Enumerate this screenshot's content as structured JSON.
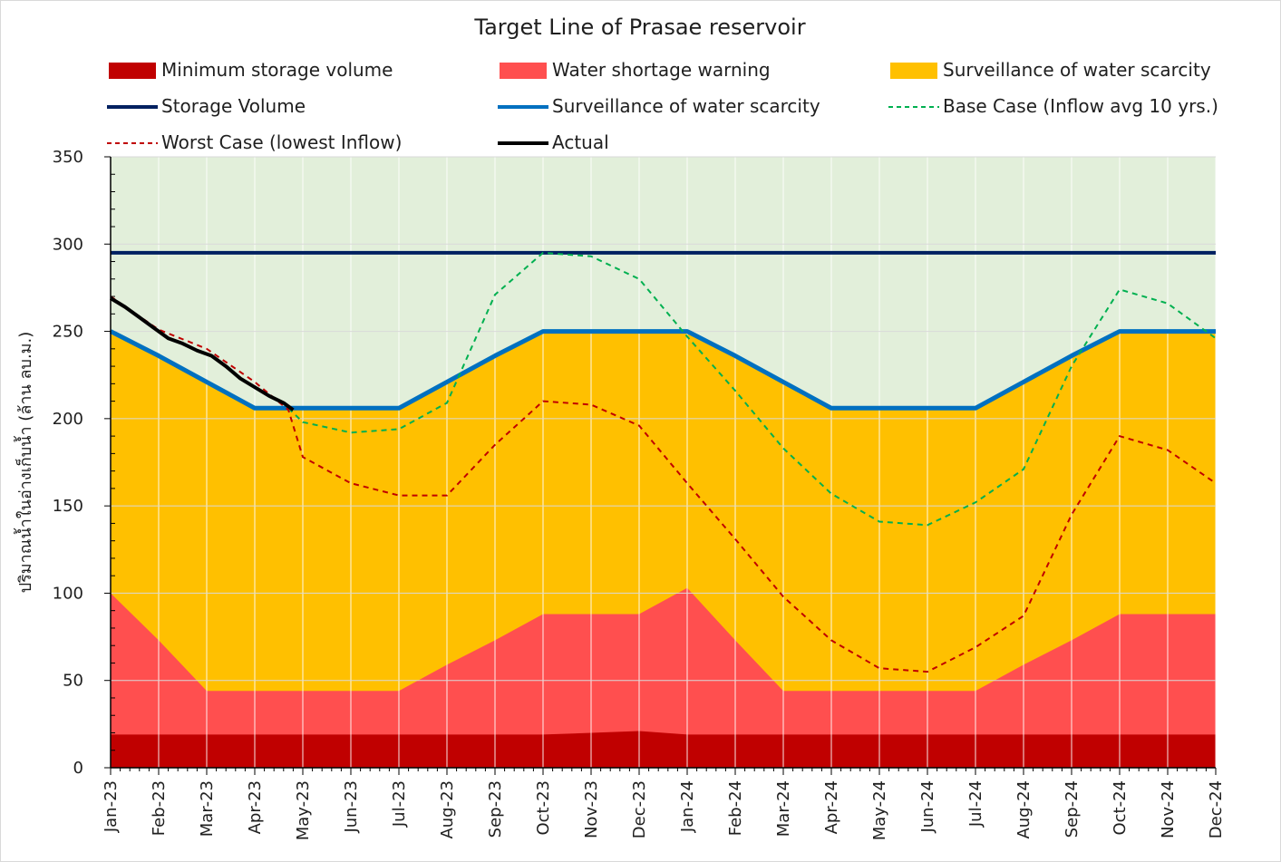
{
  "chart_data": {
    "type": "area",
    "title": "Target Line of Prasae reservoir",
    "ylabel": "ปริมาณน้ำในอ่างเก็บน้ำ (ล้าน ลบ.ม.)",
    "xlabel": "",
    "ylim": [
      0,
      350
    ],
    "yticks": [
      0,
      50,
      100,
      150,
      200,
      250,
      300,
      350
    ],
    "grid": true,
    "legend_position": "top",
    "categories": [
      "Jan-23",
      "Feb-23",
      "Mar-23",
      "Apr-23",
      "May-23",
      "Jun-23",
      "Jul-23",
      "Aug-23",
      "Sep-23",
      "Oct-23",
      "Nov-23",
      "Dec-23",
      "Jan-24",
      "Feb-24",
      "Mar-24",
      "Apr-24",
      "May-24",
      "Jun-24",
      "Jul-24",
      "Aug-24",
      "Sep-24",
      "Oct-24",
      "Nov-24",
      "Dec-24"
    ],
    "background_zone_color": "#e2efda",
    "areas": [
      {
        "name": "Surveillance of water scarcity",
        "color": "#ffc000",
        "values": [
          250,
          236,
          221,
          206,
          206,
          206,
          206,
          221,
          236,
          250,
          250,
          250,
          250,
          236,
          221,
          206,
          206,
          206,
          206,
          221,
          236,
          250,
          250,
          250
        ]
      },
      {
        "name": "Water shortage warning",
        "color": "#ff4f4f",
        "values": [
          100,
          73,
          44,
          44,
          44,
          44,
          44,
          59,
          73,
          88,
          88,
          88,
          103,
          73,
          44,
          44,
          44,
          44,
          44,
          59,
          73,
          88,
          88,
          88
        ]
      },
      {
        "name": "Minimum storage volume",
        "color": "#c00000",
        "values": [
          19,
          19,
          19,
          19,
          19,
          19,
          19,
          19,
          19,
          19,
          20,
          21,
          19,
          19,
          19,
          19,
          19,
          19,
          19,
          19,
          19,
          19,
          19,
          19
        ]
      }
    ],
    "lines": [
      {
        "name": "Storage Volume",
        "color": "#002060",
        "style": "solid",
        "values": [
          295,
          295,
          295,
          295,
          295,
          295,
          295,
          295,
          295,
          295,
          295,
          295,
          295,
          295,
          295,
          295,
          295,
          295,
          295,
          295,
          295,
          295,
          295,
          295
        ]
      },
      {
        "name": "Surveillance of water scarcity",
        "color": "#0070c0",
        "style": "solid",
        "values": [
          250,
          236,
          221,
          206,
          206,
          206,
          206,
          221,
          236,
          250,
          250,
          250,
          250,
          236,
          221,
          206,
          206,
          206,
          206,
          221,
          236,
          250,
          250,
          250
        ]
      },
      {
        "name": "Base Case (Inflow avg 10 yrs.)",
        "color": "#00b050",
        "style": "dashed",
        "x_start": 3.7,
        "values_after": [
          {
            "x": 3.7,
            "y": 206
          },
          {
            "x": 4,
            "y": 198
          },
          {
            "x": 5,
            "y": 192
          },
          {
            "x": 6,
            "y": 194
          },
          {
            "x": 7,
            "y": 209
          },
          {
            "x": 8,
            "y": 271
          },
          {
            "x": 9,
            "y": 295
          },
          {
            "x": 10,
            "y": 293
          },
          {
            "x": 11,
            "y": 280
          },
          {
            "x": 12,
            "y": 247
          },
          {
            "x": 13,
            "y": 216
          },
          {
            "x": 14,
            "y": 183
          },
          {
            "x": 15,
            "y": 157
          },
          {
            "x": 16,
            "y": 141
          },
          {
            "x": 17,
            "y": 139
          },
          {
            "x": 18,
            "y": 152
          },
          {
            "x": 19,
            "y": 171
          },
          {
            "x": 20,
            "y": 230
          },
          {
            "x": 21,
            "y": 274
          },
          {
            "x": 22,
            "y": 266
          },
          {
            "x": 23,
            "y": 246
          }
        ]
      },
      {
        "name": "Worst Case (lowest Inflow)",
        "color": "#c00000",
        "style": "dashed",
        "points": [
          {
            "x": 0,
            "y": 270
          },
          {
            "x": 1,
            "y": 251
          },
          {
            "x": 2,
            "y": 240
          },
          {
            "x": 3,
            "y": 221
          },
          {
            "x": 3.7,
            "y": 205
          },
          {
            "x": 4,
            "y": 178
          },
          {
            "x": 5,
            "y": 163
          },
          {
            "x": 6,
            "y": 156
          },
          {
            "x": 7,
            "y": 156
          },
          {
            "x": 8,
            "y": 185
          },
          {
            "x": 9,
            "y": 210
          },
          {
            "x": 10,
            "y": 208
          },
          {
            "x": 11,
            "y": 196
          },
          {
            "x": 12,
            "y": 163
          },
          {
            "x": 13,
            "y": 131
          },
          {
            "x": 14,
            "y": 98
          },
          {
            "x": 15,
            "y": 73
          },
          {
            "x": 16,
            "y": 57
          },
          {
            "x": 17,
            "y": 55
          },
          {
            "x": 18,
            "y": 69
          },
          {
            "x": 19,
            "y": 87
          },
          {
            "x": 20,
            "y": 145
          },
          {
            "x": 21,
            "y": 190
          },
          {
            "x": 22,
            "y": 182
          },
          {
            "x": 23,
            "y": 163
          }
        ]
      },
      {
        "name": "Actual",
        "color": "#000000",
        "style": "solid",
        "points": [
          {
            "x": 0,
            "y": 269
          },
          {
            "x": 0.3,
            "y": 264
          },
          {
            "x": 0.6,
            "y": 258
          },
          {
            "x": 0.9,
            "y": 252
          },
          {
            "x": 1.2,
            "y": 246
          },
          {
            "x": 1.5,
            "y": 243
          },
          {
            "x": 1.8,
            "y": 239
          },
          {
            "x": 2.1,
            "y": 236
          },
          {
            "x": 2.4,
            "y": 230
          },
          {
            "x": 2.7,
            "y": 223
          },
          {
            "x": 3.0,
            "y": 218
          },
          {
            "x": 3.3,
            "y": 213
          },
          {
            "x": 3.6,
            "y": 209
          },
          {
            "x": 3.8,
            "y": 205
          }
        ]
      }
    ]
  },
  "legend": [
    {
      "label": "Minimum storage volume",
      "kind": "box",
      "color": "#c00000"
    },
    {
      "label": "Water shortage warning",
      "kind": "box",
      "color": "#ff4f4f"
    },
    {
      "label": "Surveillance of water scarcity",
      "kind": "box",
      "color": "#ffc000"
    },
    {
      "label": "Storage Volume",
      "kind": "line",
      "color": "#002060"
    },
    {
      "label": "Surveillance of water scarcity",
      "kind": "line",
      "color": "#0070c0"
    },
    {
      "label": "Base Case (Inflow avg 10 yrs.)",
      "kind": "dash",
      "color": "#00b050"
    },
    {
      "label": "Worst Case (lowest Inflow)",
      "kind": "dash",
      "color": "#c00000"
    },
    {
      "label": "Actual",
      "kind": "line",
      "color": "#000000"
    }
  ]
}
